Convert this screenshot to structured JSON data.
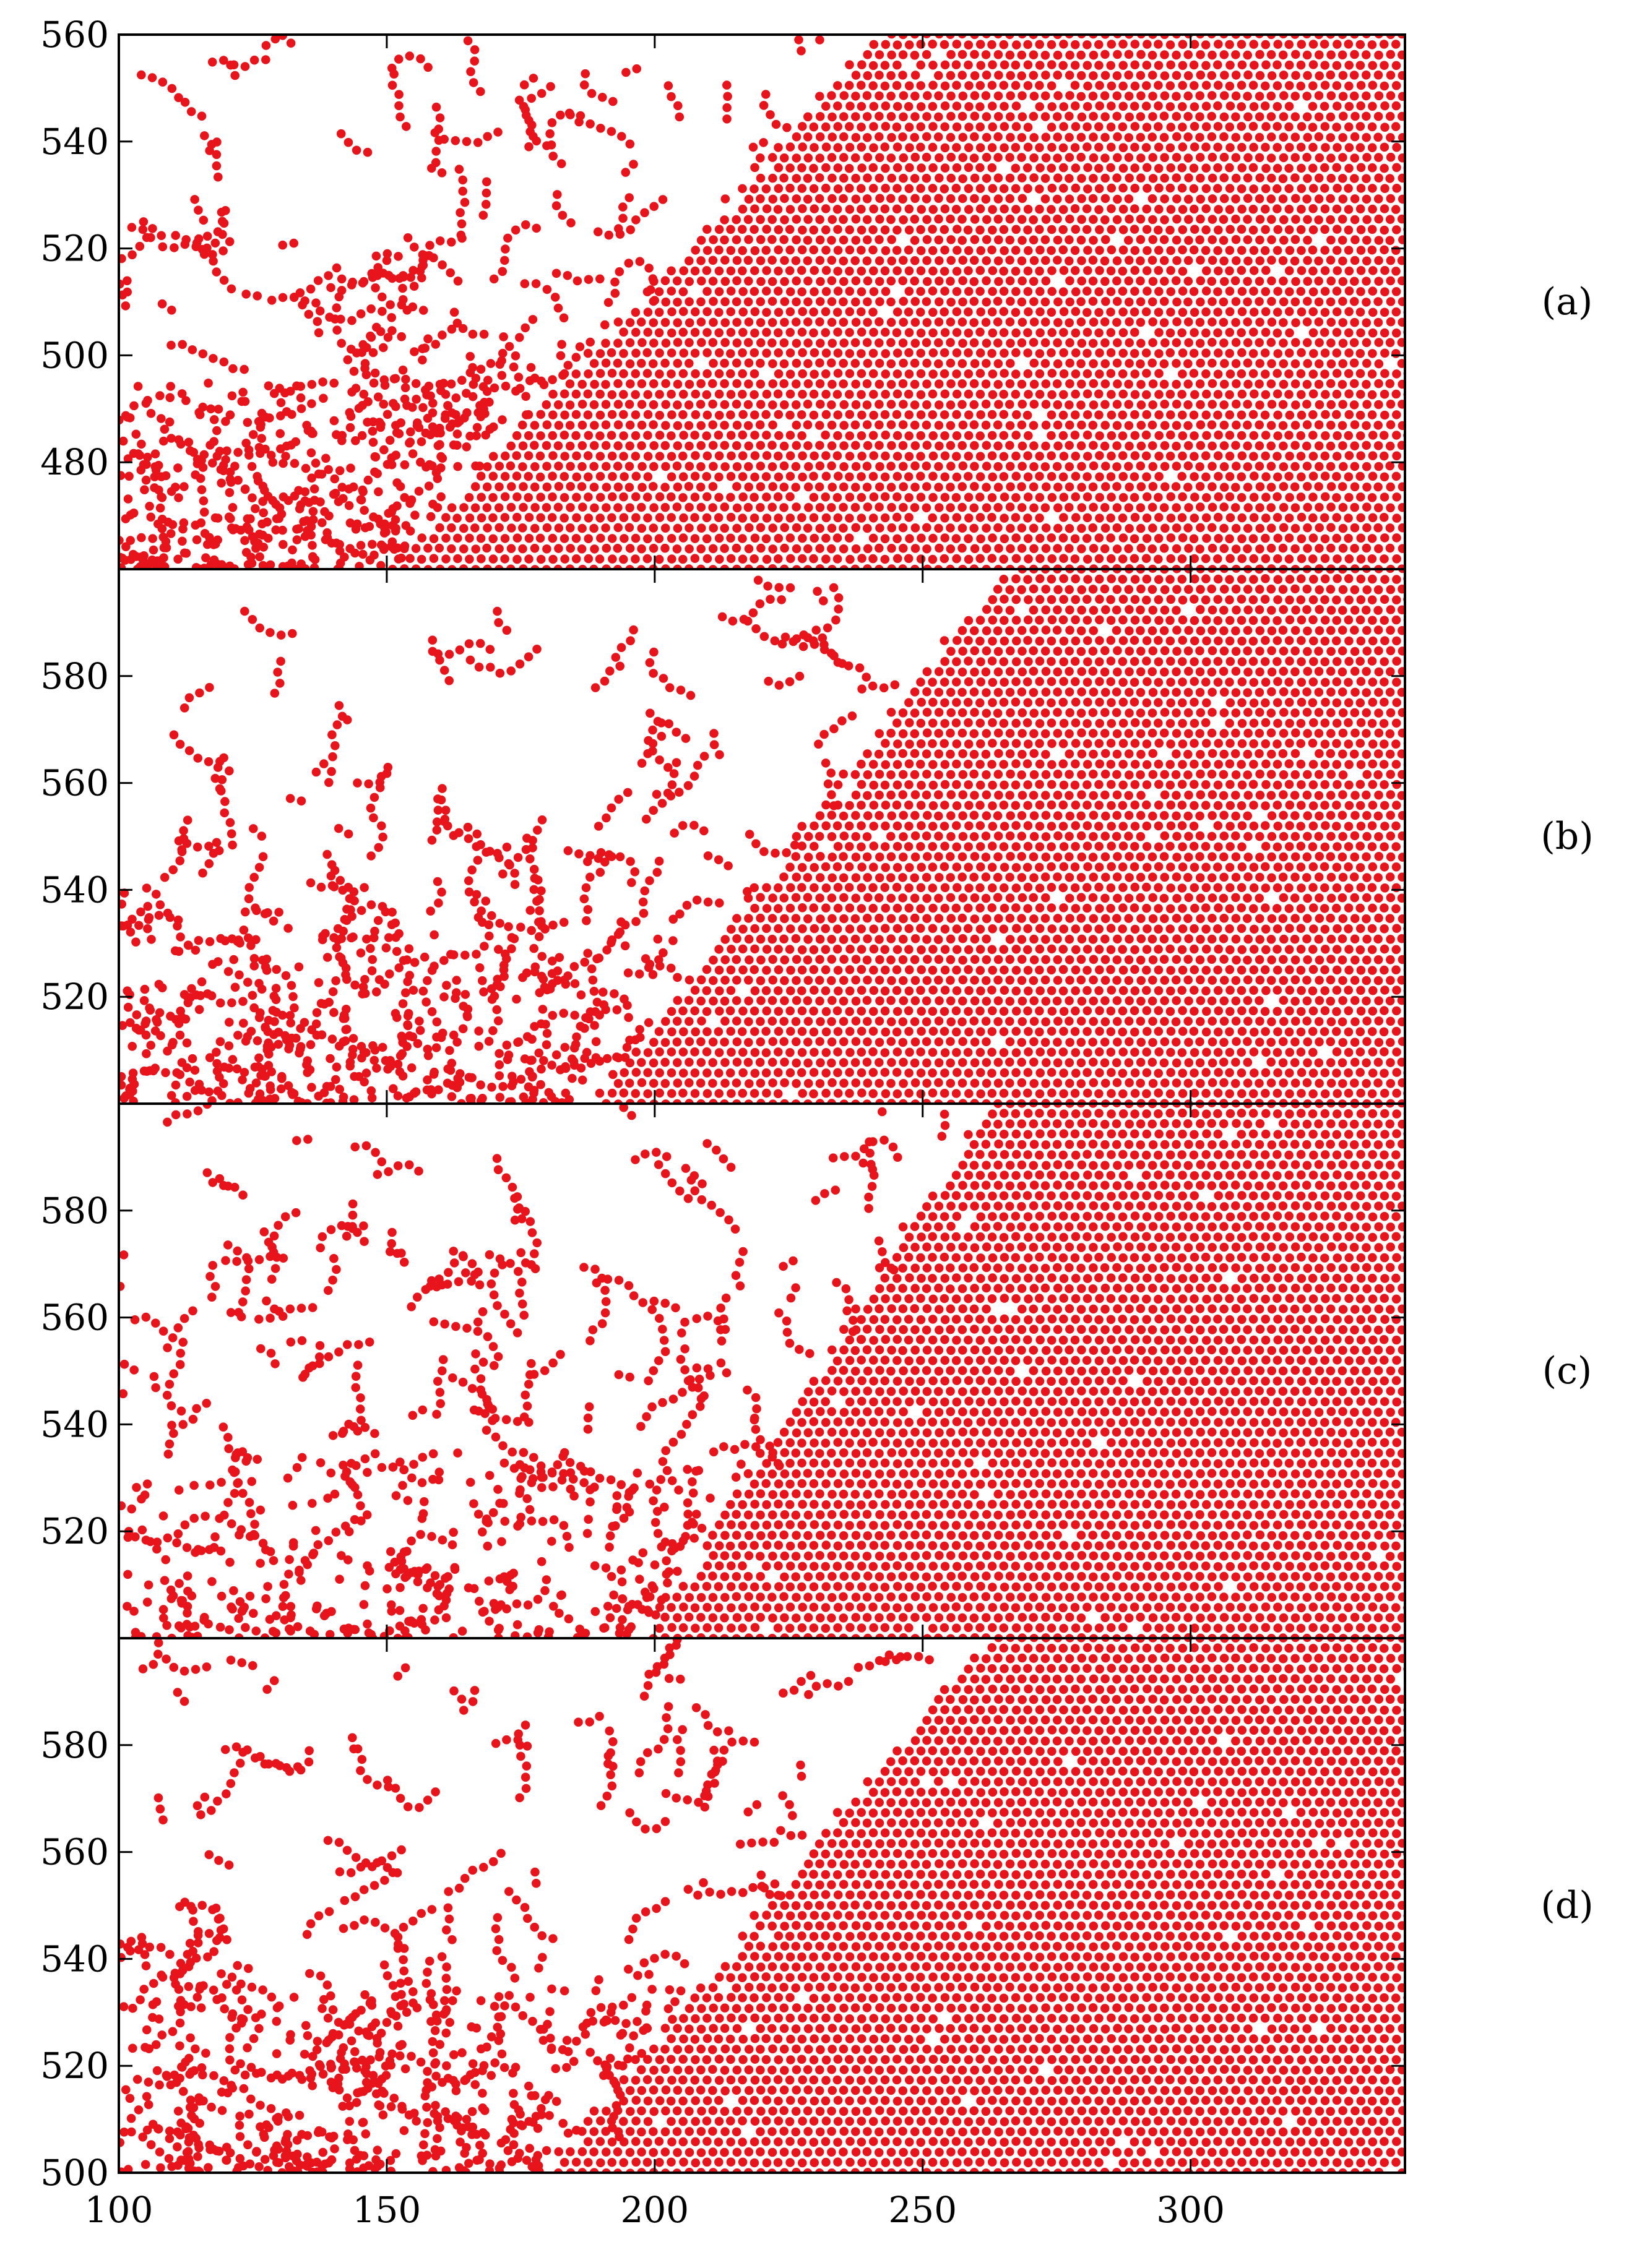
{
  "chart_data": {
    "type": "scatter",
    "marker_color": "#e8141c",
    "grid": false,
    "legend": "none",
    "shared_x": {
      "xlim": [
        100,
        340
      ],
      "xticks": [
        100,
        150,
        200,
        250,
        300
      ],
      "xtick_labels": [
        "100",
        "150",
        "200",
        "250",
        "300"
      ]
    },
    "panels": [
      {
        "label": "(a)",
        "ylim": [
          460,
          560
        ],
        "yticks": [
          480,
          500,
          520,
          540,
          560
        ],
        "ytick_labels": [
          "480",
          "500",
          "520",
          "540",
          "560"
        ],
        "crystal_front": {
          "top_x": 242,
          "bottom_x": 150,
          "right_crystal_start_x": 242
        },
        "disordered_region": "upper-left, x < 240"
      },
      {
        "label": "(b)",
        "ylim": [
          500,
          600
        ],
        "yticks": [
          520,
          540,
          560,
          580
        ],
        "ytick_labels": [
          "520",
          "540",
          "560",
          "580"
        ],
        "crystal_front": {
          "top_x": 265,
          "bottom_x": 188
        },
        "disordered_region": "left, x < 265"
      },
      {
        "label": "(c)",
        "ylim": [
          500,
          600
        ],
        "yticks": [
          520,
          540,
          560,
          580
        ],
        "ytick_labels": [
          "520",
          "540",
          "560",
          "580"
        ],
        "crystal_front": {
          "top_x": 262,
          "bottom_x": 198
        },
        "disordered_region": "left, x < 262"
      },
      {
        "label": "(d)",
        "ylim": [
          500,
          600
        ],
        "yticks": [
          500,
          520,
          540,
          560,
          580
        ],
        "ytick_labels": [
          "500",
          "520",
          "540",
          "560",
          "580"
        ],
        "crystal_front": {
          "top_x": 262,
          "bottom_x": 180
        },
        "disordered_region": "left, x < 262"
      }
    ]
  }
}
